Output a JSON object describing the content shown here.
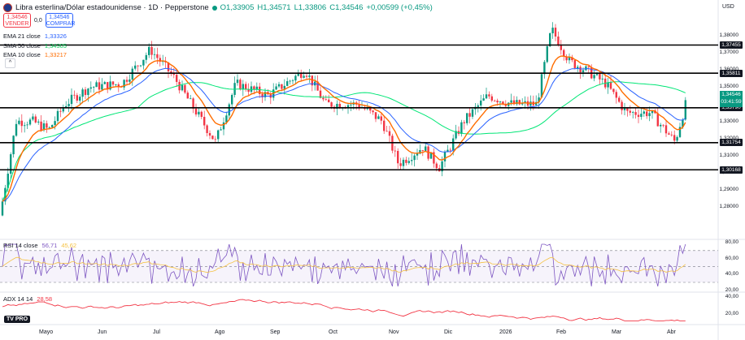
{
  "header": {
    "symbol": "Libra esterlina/Dólar estadounidense · 1D · Pepperstone",
    "open": "O1,33905",
    "high": "H1,34571",
    "low": "L1,33806",
    "close": "C1,34546",
    "change": "+0,00599 (+0,45%)",
    "currency": "USD"
  },
  "trade": {
    "sell_price": "1,34546",
    "sell_label": "VENDER",
    "spread": "0,0",
    "buy_price": "1,34546",
    "buy_label": "COMPRAR"
  },
  "indicators": [
    {
      "label": "EMA 21 close",
      "value": "1,33326",
      "color": "#2962ff"
    },
    {
      "label": "SMA 50 close",
      "value": "1,34305",
      "color": "#00e676"
    },
    {
      "label": "EMA 10 close",
      "value": "1,33217",
      "color": "#ff6d00"
    }
  ],
  "price_axis": [
    "1,38000",
    "1,37000",
    "1,36000",
    "1,35000",
    "1,34000",
    "1,33000",
    "1,32000",
    "1,31000",
    "1,30000",
    "1,29000",
    "1,28000"
  ],
  "levels": [
    "1,37455",
    "1,35811",
    "1,33790",
    "1,31754",
    "1,30168"
  ],
  "current": {
    "price": "1,34546",
    "countdown": "03:41:59"
  },
  "rsi": {
    "label": "RSI 14 close",
    "value": "56,71",
    "ma_value": "45,62",
    "axis": [
      "80,00",
      "60,00",
      "40,00",
      "20,00"
    ]
  },
  "adx": {
    "label": "ADX 14 14",
    "value": "28,58",
    "axis": [
      "40,00",
      "20,00"
    ]
  },
  "months": [
    "Mayo",
    "Jun",
    "Jul",
    "Ago",
    "Sep",
    "Oct",
    "Nov",
    "Dic",
    "2026",
    "Feb",
    "Mar",
    "Abr"
  ],
  "colors": {
    "up": "#089981",
    "down": "#f23645",
    "ema21": "#2962ff",
    "sma50": "#00e676",
    "ema10": "#ff6d00",
    "rsi": "#7e57c2",
    "adx": "#f23645"
  },
  "logo": "TV PRO"
}
